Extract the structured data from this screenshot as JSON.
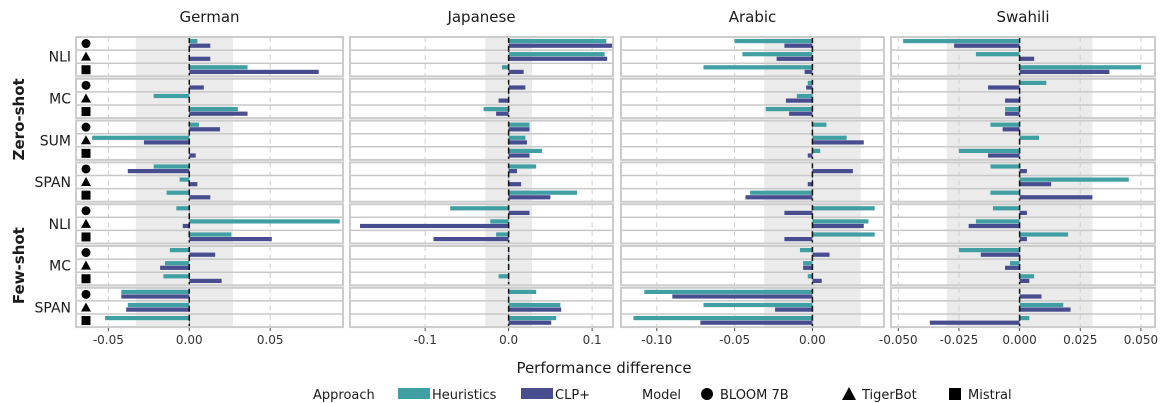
{
  "chart_data": {
    "type": "bar",
    "xlabel": "Performance difference",
    "facets": [
      {
        "name": "German",
        "xlim": [
          -0.07,
          0.095
        ],
        "ticks": [
          -0.05,
          0.0,
          0.05
        ],
        "tick_labels": [
          "-0.05",
          "0.00",
          "0.05"
        ],
        "band": [
          -0.033,
          0.027
        ]
      },
      {
        "name": "Japanese",
        "xlim": [
          -0.19,
          0.125
        ],
        "ticks": [
          -0.1,
          0.0,
          0.1
        ],
        "tick_labels": [
          "-0.1",
          "0.0",
          "0.1"
        ],
        "band": [
          -0.028,
          0.028
        ]
      },
      {
        "name": "Arabic",
        "xlim": [
          -0.123,
          0.046
        ],
        "ticks": [
          -0.1,
          -0.05,
          0.0
        ],
        "tick_labels": [
          "-0.10",
          "-0.05",
          "0.00"
        ],
        "band": [
          -0.031,
          0.031
        ]
      },
      {
        "name": "Swahili",
        "xlim": [
          -0.053,
          0.0558
        ],
        "ticks": [
          -0.05,
          -0.025,
          0.0,
          0.025,
          0.05
        ],
        "tick_labels": [
          "-0.050",
          "-0.025",
          "0.000",
          "0.025",
          "0.050"
        ],
        "band": [
          -0.03,
          0.03
        ]
      }
    ],
    "rows": [
      {
        "group": "Zero-shot",
        "task": "NLI",
        "values": {
          "German": [
            [
              0.005,
              0.013
            ],
            [
              0.0,
              0.013
            ],
            [
              0.036,
              0.08
            ]
          ],
          "Japanese": [
            [
              0.117,
              0.125
            ],
            [
              0.115,
              0.118
            ],
            [
              -0.008,
              0.018
            ]
          ],
          "Arabic": [
            [
              -0.05,
              -0.018
            ],
            [
              -0.045,
              -0.023
            ],
            [
              -0.07,
              -0.005
            ]
          ],
          "Swahili": [
            [
              -0.048,
              -0.027
            ],
            [
              -0.018,
              0.006
            ],
            [
              0.05,
              0.037
            ]
          ]
        }
      },
      {
        "group": "Zero-shot",
        "task": "MC",
        "values": {
          "German": [
            [
              0.0,
              0.009
            ],
            [
              -0.022,
              0.0
            ],
            [
              0.03,
              0.036
            ]
          ],
          "Japanese": [
            [
              0.0,
              0.02
            ],
            [
              0.0,
              -0.012
            ],
            [
              -0.03,
              -0.015
            ]
          ],
          "Arabic": [
            [
              -0.003,
              -0.004
            ],
            [
              -0.01,
              -0.017
            ],
            [
              -0.03,
              -0.015
            ]
          ],
          "Swahili": [
            [
              0.011,
              -0.013
            ],
            [
              0.0,
              -0.006
            ],
            [
              -0.006,
              -0.006
            ]
          ]
        }
      },
      {
        "group": "Zero-shot",
        "task": "SUM",
        "values": {
          "German": [
            [
              0.006,
              0.019
            ],
            [
              -0.06,
              -0.028
            ],
            [
              0.0,
              0.004
            ]
          ],
          "Japanese": [
            [
              0.025,
              0.025
            ],
            [
              0.02,
              0.022
            ],
            [
              0.04,
              0.025
            ]
          ],
          "Arabic": [
            [
              0.009,
              0.0
            ],
            [
              0.022,
              0.033
            ],
            [
              0.005,
              -0.003
            ]
          ],
          "Swahili": [
            [
              -0.012,
              -0.007
            ],
            [
              0.008,
              0.0
            ],
            [
              -0.025,
              -0.013
            ]
          ]
        }
      },
      {
        "group": "Zero-shot",
        "task": "SPAN",
        "values": {
          "German": [
            [
              -0.022,
              -0.038
            ],
            [
              -0.006,
              0.005
            ],
            [
              -0.014,
              0.013
            ]
          ],
          "Japanese": [
            [
              0.033,
              0.01
            ],
            [
              0.0,
              0.015
            ],
            [
              0.082,
              0.05
            ]
          ],
          "Arabic": [
            [
              0.0,
              0.026
            ],
            [
              0.0,
              -0.003
            ],
            [
              -0.04,
              -0.043
            ]
          ],
          "Swahili": [
            [
              -0.012,
              0.003
            ],
            [
              0.045,
              0.013
            ],
            [
              -0.012,
              0.03
            ]
          ]
        }
      },
      {
        "group": "Few-shot",
        "task": "NLI",
        "values": {
          "German": [
            [
              -0.008,
              0.0
            ],
            [
              0.093,
              -0.004
            ],
            [
              0.026,
              0.051
            ]
          ],
          "Japanese": [
            [
              -0.07,
              0.025
            ],
            [
              -0.022,
              -0.178
            ],
            [
              -0.015,
              -0.09
            ]
          ],
          "Arabic": [
            [
              0.04,
              -0.018
            ],
            [
              0.036,
              0.033
            ],
            [
              0.04,
              -0.018
            ]
          ],
          "Swahili": [
            [
              -0.011,
              0.003
            ],
            [
              -0.018,
              -0.021
            ],
            [
              0.02,
              0.003
            ]
          ]
        }
      },
      {
        "group": "Few-shot",
        "task": "MC",
        "values": {
          "German": [
            [
              -0.012,
              0.016
            ],
            [
              -0.015,
              -0.018
            ],
            [
              -0.016,
              0.02
            ]
          ],
          "Japanese": [
            [
              0.0,
              0.0
            ],
            [
              0.0,
              0.0
            ],
            [
              -0.012,
              0.0
            ]
          ],
          "Arabic": [
            [
              -0.008,
              0.011
            ],
            [
              -0.006,
              -0.006
            ],
            [
              -0.003,
              0.006
            ]
          ],
          "Swahili": [
            [
              -0.025,
              -0.016
            ],
            [
              -0.004,
              -0.006
            ],
            [
              0.006,
              0.004
            ]
          ]
        }
      },
      {
        "group": "Few-shot",
        "task": "SPAN",
        "values": {
          "German": [
            [
              -0.042,
              -0.042
            ],
            [
              -0.038,
              -0.039
            ],
            [
              -0.052,
              0.0
            ]
          ],
          "Japanese": [
            [
              0.033,
              0.0
            ],
            [
              0.062,
              0.063
            ],
            [
              0.057,
              0.051
            ]
          ],
          "Arabic": [
            [
              -0.108,
              -0.09
            ],
            [
              -0.07,
              -0.024
            ],
            [
              -0.115,
              -0.072
            ]
          ],
          "Swahili": [
            [
              0.0,
              0.009
            ],
            [
              0.018,
              0.021
            ],
            [
              0.004,
              -0.037
            ]
          ]
        }
      }
    ],
    "groups": [
      "Zero-shot",
      "Few-shot"
    ],
    "series": [
      {
        "name": "Heuristics",
        "color": "#3f9fa3"
      },
      {
        "name": "CLP+",
        "color": "#474d8e"
      }
    ],
    "models": [
      {
        "name": "BLOOM 7B",
        "shape": "circle"
      },
      {
        "name": "TigerBot",
        "shape": "triangle"
      },
      {
        "name": "Mistral",
        "shape": "square"
      }
    ],
    "legend": {
      "approach_title": "Approach",
      "model_title": "Model",
      "placement": "bottom"
    },
    "grid": true
  }
}
